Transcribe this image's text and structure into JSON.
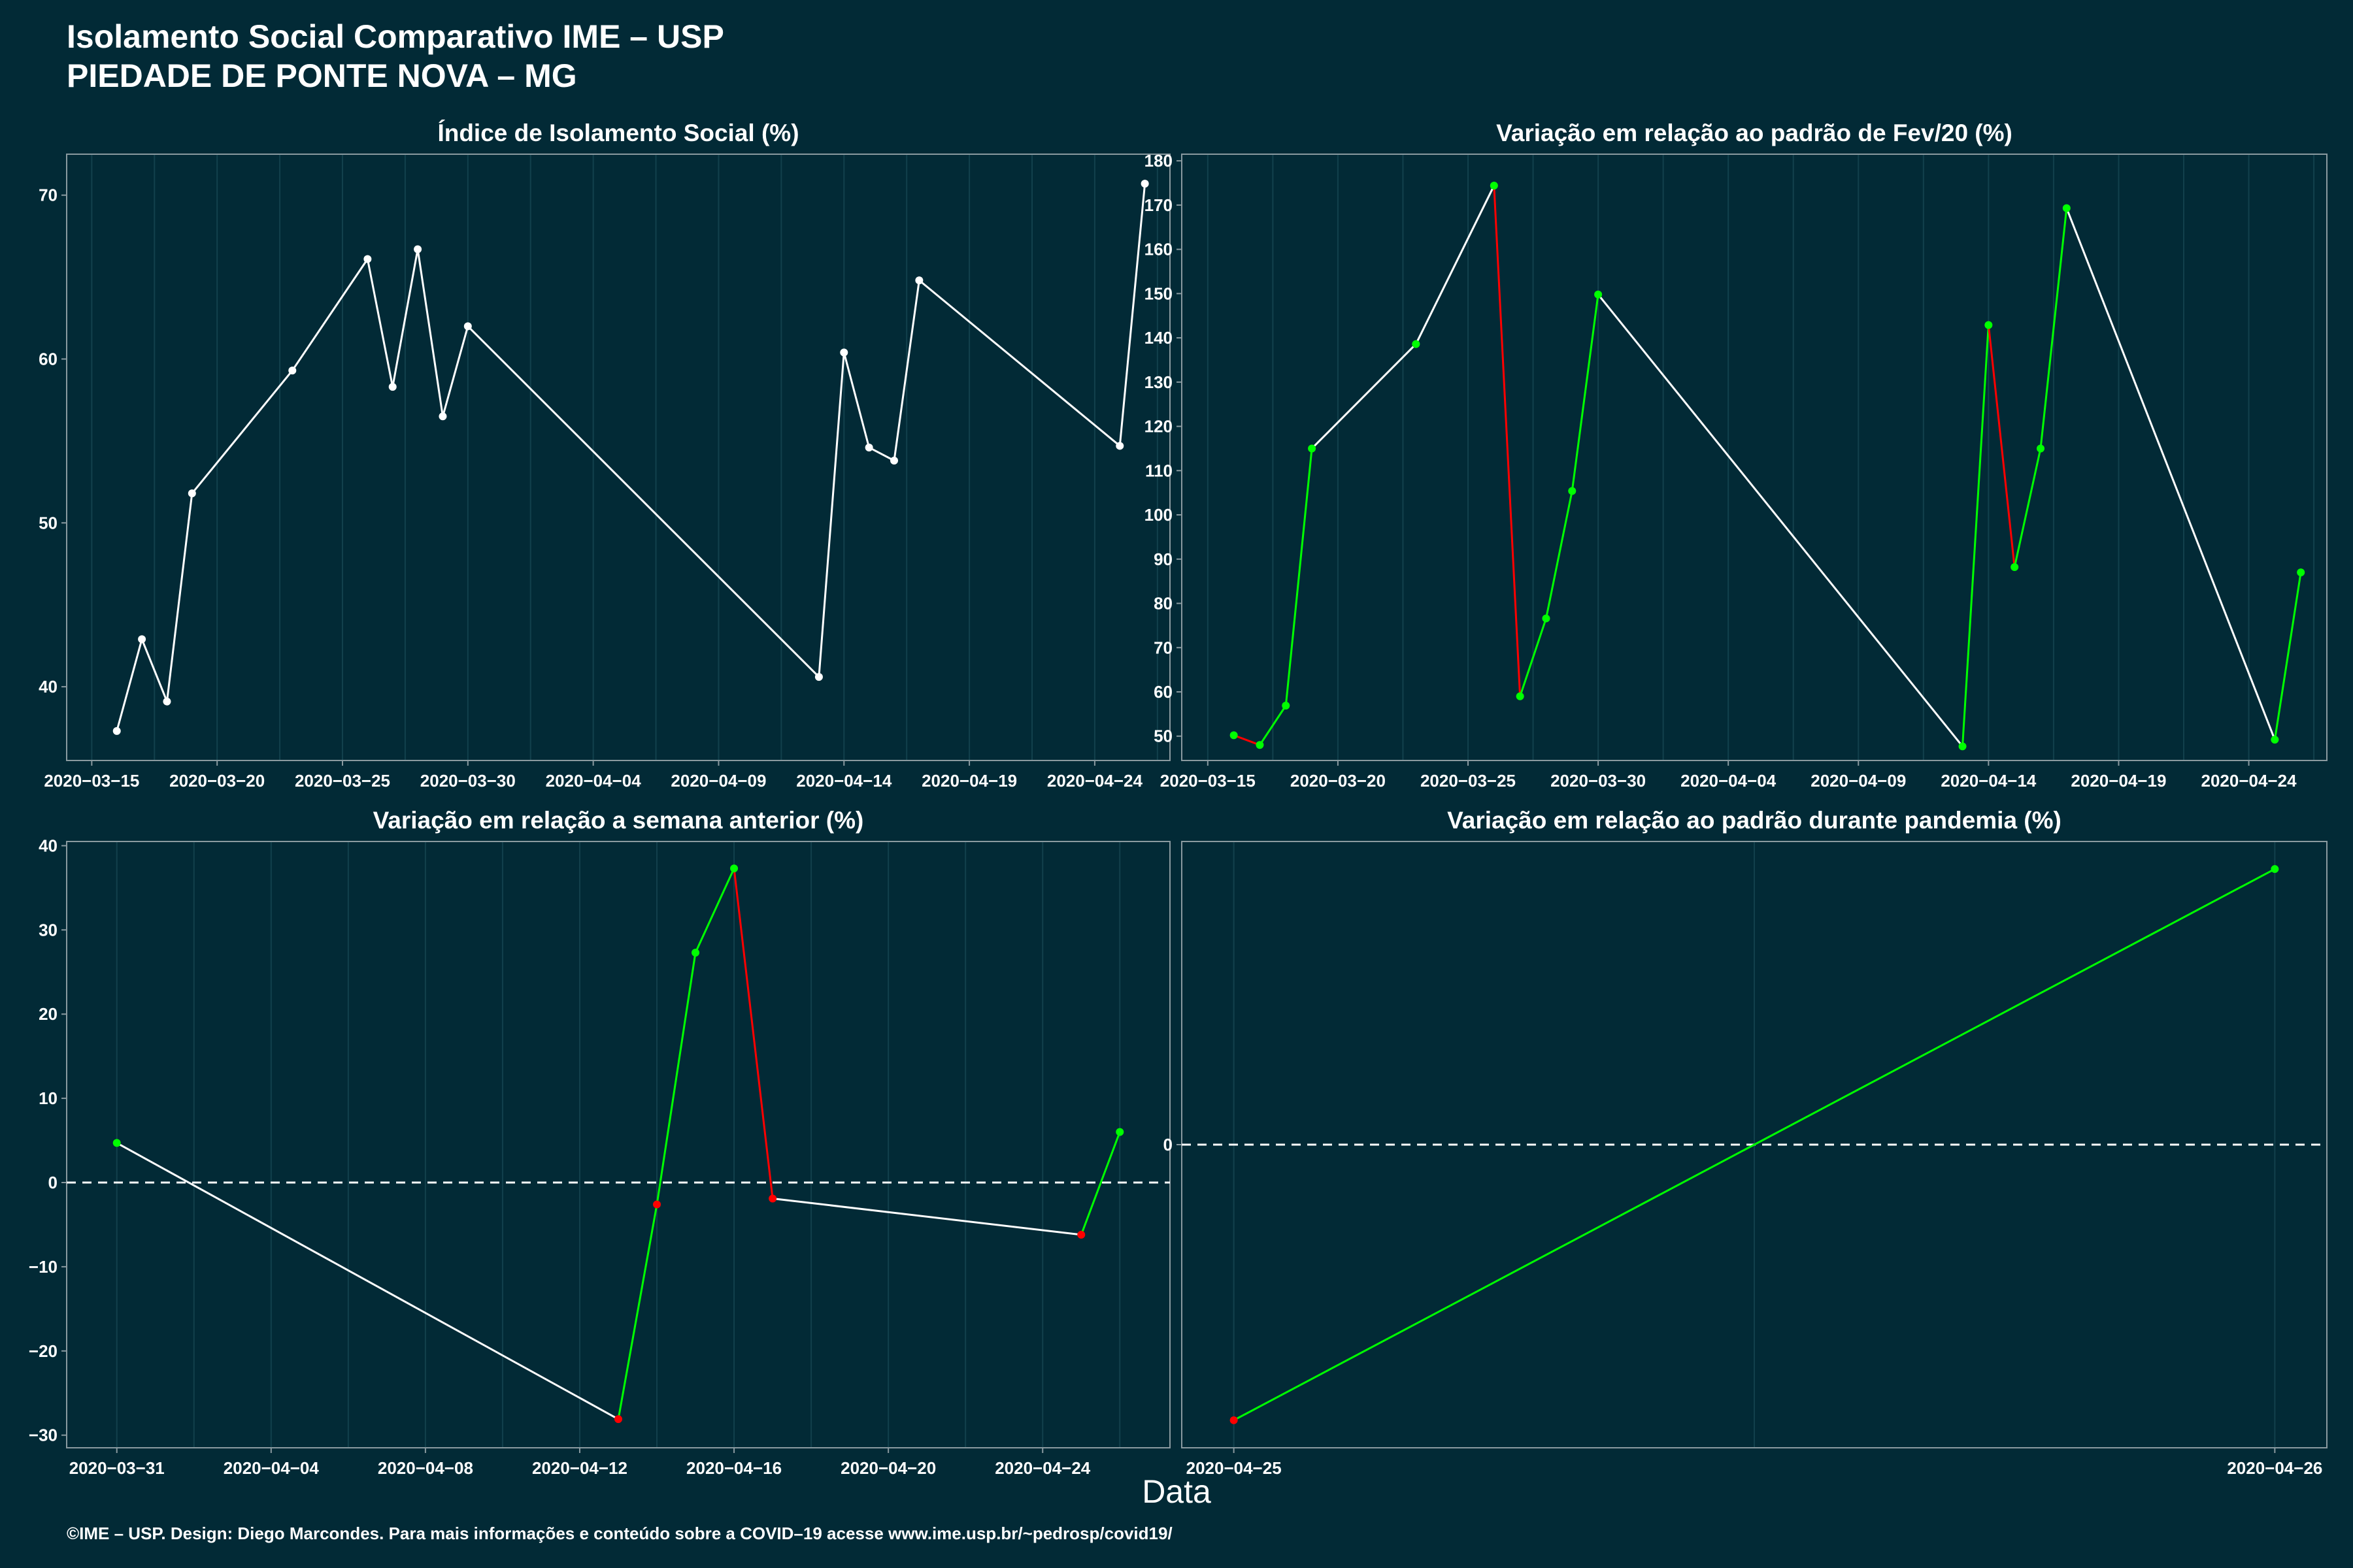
{
  "header": {
    "title_line1": "Isolamento Social Comparativo IME – USP",
    "title_line2": "PIEDADE DE PONTE NOVA – MG"
  },
  "x_axis_title": "Data",
  "footer": "©IME – USP. Design: Diego Marcondes. Para mais informações e conteúdo sobre a COVID–19 acesse www.ime.usp.br/~pedrosp/covid19/",
  "colors": {
    "background": "#022a36",
    "panel_border": "#8a9aa0",
    "grid": "#12404c",
    "line_default": "#ffffff",
    "increase": "#00ff00",
    "decrease": "#ff0000",
    "reference_line": "#ffffff"
  },
  "chart_data": [
    {
      "type": "line",
      "title": "Índice de Isolamento Social (%)",
      "xlabel": "Data",
      "ylabel": "",
      "x_ticks": [
        "2020-03-15",
        "2020-03-20",
        "2020-03-25",
        "2020-03-30",
        "2020-04-04",
        "2020-04-09",
        "2020-04-14",
        "2020-04-19",
        "2020-04-24"
      ],
      "y_ticks": [
        40,
        50,
        60,
        70
      ],
      "xlim": [
        "2020-03-14",
        "2020-04-27"
      ],
      "ylim": [
        35.5,
        72.5
      ],
      "points": [
        {
          "x": "2020-03-16",
          "y": 37.3,
          "color": "white"
        },
        {
          "x": "2020-03-17",
          "y": 42.9,
          "color": "white"
        },
        {
          "x": "2020-03-18",
          "y": 39.1,
          "color": "white"
        },
        {
          "x": "2020-03-19",
          "y": 51.8,
          "color": "white"
        },
        {
          "x": "2020-03-23",
          "y": 59.3,
          "color": "white"
        },
        {
          "x": "2020-03-26",
          "y": 66.1,
          "color": "white"
        },
        {
          "x": "2020-03-27",
          "y": 58.3,
          "color": "white"
        },
        {
          "x": "2020-03-28",
          "y": 66.7,
          "color": "white"
        },
        {
          "x": "2020-03-29",
          "y": 56.5,
          "color": "white"
        },
        {
          "x": "2020-03-30",
          "y": 62.0,
          "color": "white"
        },
        {
          "x": "2020-04-13",
          "y": 40.6,
          "color": "white"
        },
        {
          "x": "2020-04-14",
          "y": 60.4,
          "color": "white"
        },
        {
          "x": "2020-04-15",
          "y": 54.6,
          "color": "white"
        },
        {
          "x": "2020-04-16",
          "y": 53.8,
          "color": "white"
        },
        {
          "x": "2020-04-17",
          "y": 64.8,
          "color": "white"
        },
        {
          "x": "2020-04-25",
          "y": 54.7,
          "color": "white"
        },
        {
          "x": "2020-04-26",
          "y": 70.7,
          "color": "white"
        }
      ]
    },
    {
      "type": "line",
      "title": "Variação em relação ao padrão de Fev/20 (%)",
      "xlabel": "Data",
      "ylabel": "",
      "x_ticks": [
        "2020-03-15",
        "2020-03-20",
        "2020-03-25",
        "2020-03-30",
        "2020-04-04",
        "2020-04-09",
        "2020-04-14",
        "2020-04-19",
        "2020-04-24"
      ],
      "y_ticks": [
        50,
        60,
        70,
        80,
        90,
        100,
        110,
        120,
        130,
        140,
        150,
        160,
        170,
        180
      ],
      "xlim": [
        "2020-03-14",
        "2020-04-27"
      ],
      "ylim": [
        44.5,
        181.5
      ],
      "points": [
        {
          "x": "2020-03-16",
          "y": 50.2,
          "color": "green"
        },
        {
          "x": "2020-03-17",
          "y": 48.0,
          "color": "green"
        },
        {
          "x": "2020-03-18",
          "y": 56.9,
          "color": "green"
        },
        {
          "x": "2020-03-19",
          "y": 115.0,
          "color": "green"
        },
        {
          "x": "2020-03-23",
          "y": 138.6,
          "color": "green"
        },
        {
          "x": "2020-03-26",
          "y": 174.4,
          "color": "green"
        },
        {
          "x": "2020-03-27",
          "y": 59.0,
          "color": "green"
        },
        {
          "x": "2020-03-28",
          "y": 76.6,
          "color": "green"
        },
        {
          "x": "2020-03-29",
          "y": 105.4,
          "color": "green"
        },
        {
          "x": "2020-03-30",
          "y": 149.8,
          "color": "green"
        },
        {
          "x": "2020-04-13",
          "y": 47.7,
          "color": "green"
        },
        {
          "x": "2020-04-14",
          "y": 142.9,
          "color": "green"
        },
        {
          "x": "2020-04-15",
          "y": 88.2,
          "color": "green"
        },
        {
          "x": "2020-04-16",
          "y": 115.0,
          "color": "green"
        },
        {
          "x": "2020-04-17",
          "y": 169.3,
          "color": "green"
        },
        {
          "x": "2020-04-25",
          "y": 49.2,
          "color": "green"
        },
        {
          "x": "2020-04-26",
          "y": 87.0,
          "color": "green"
        }
      ]
    },
    {
      "type": "line",
      "title": "Variação em relação a semana anterior (%)",
      "xlabel": "Data",
      "ylabel": "",
      "x_ticks": [
        "2020-03-31",
        "2020-04-04",
        "2020-04-08",
        "2020-04-12",
        "2020-04-16",
        "2020-04-20",
        "2020-04-24"
      ],
      "y_ticks": [
        -30,
        -20,
        -10,
        0,
        10,
        20,
        30,
        40
      ],
      "xlim": [
        "2020-03-29.7",
        "2020-04-27.3"
      ],
      "ylim": [
        -31.5,
        40.5
      ],
      "reference_line": 0,
      "points": [
        {
          "x": "2020-03-31",
          "y": 4.7,
          "color": "green"
        },
        {
          "x": "2020-04-13",
          "y": -28.1,
          "color": "red"
        },
        {
          "x": "2020-04-14",
          "y": -2.6,
          "color": "red"
        },
        {
          "x": "2020-04-15",
          "y": 27.3,
          "color": "green"
        },
        {
          "x": "2020-04-16",
          "y": 37.3,
          "color": "green"
        },
        {
          "x": "2020-04-17",
          "y": -1.9,
          "color": "red"
        },
        {
          "x": "2020-04-25",
          "y": -6.2,
          "color": "red"
        },
        {
          "x": "2020-04-26",
          "y": 6.0,
          "color": "green"
        }
      ]
    },
    {
      "type": "line",
      "title": "Variação em relação ao padrão durante pandemia (%)",
      "xlabel": "Data",
      "ylabel": "",
      "x_ticks": [
        "2020-04-25",
        "2020-04-26"
      ],
      "y_ticks": [
        0
      ],
      "xlim": [
        "2020-04-24.95",
        "2020-04-26.05"
      ],
      "ylim": [
        -1.1,
        1.1
      ],
      "reference_line": 0,
      "points": [
        {
          "x": "2020-04-25",
          "y": -1.0,
          "color": "red"
        },
        {
          "x": "2020-04-26",
          "y": 1.0,
          "color": "green"
        }
      ]
    }
  ]
}
